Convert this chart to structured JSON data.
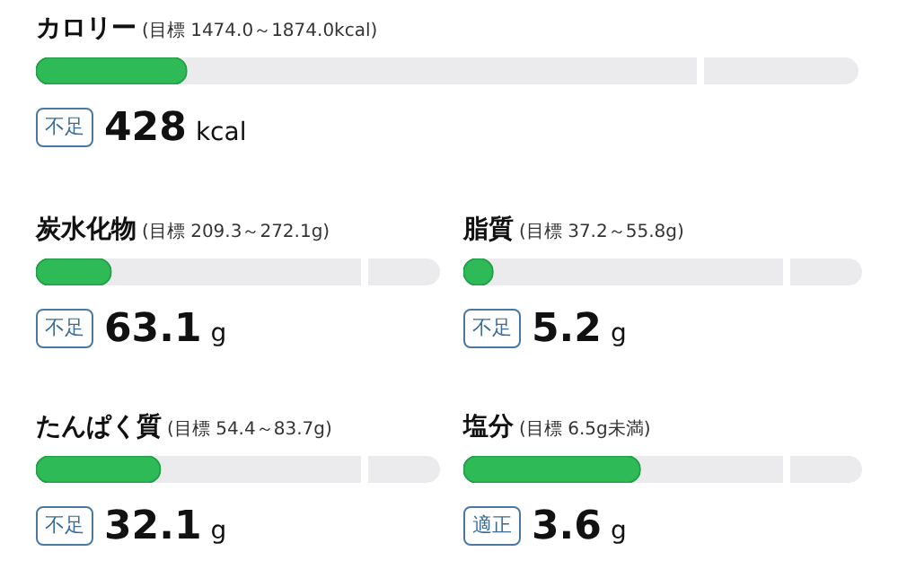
{
  "chart_data": [
    {
      "type": "other",
      "title": "カロリー",
      "subtitle": "(目標 1474.0～1874.0kcal)",
      "values": [
        428
      ],
      "color": "#2dba57",
      "data_labels": true,
      "annotations": [
        "不足",
        "kcal"
      ]
    },
    {
      "type": "other",
      "title": "炭水化物",
      "subtitle": "(目標 209.3～272.1g)",
      "values": [
        63.1
      ],
      "color": "#2dba57",
      "data_labels": true,
      "annotations": [
        "不足",
        "g"
      ]
    },
    {
      "type": "other",
      "title": "脂質",
      "subtitle": "(目標 37.2～55.8g)",
      "values": [
        5.2
      ],
      "color": "#2dba57",
      "data_labels": true,
      "annotations": [
        "不足",
        "g"
      ]
    },
    {
      "type": "other",
      "title": "たんぱく質",
      "subtitle": "(目標 54.4～83.7g)",
      "values": [
        32.1
      ],
      "color": "#2dba57",
      "data_labels": true,
      "annotations": [
        "不足",
        "g"
      ]
    },
    {
      "type": "other",
      "title": "塩分",
      "subtitle": "(目標 6.5g未満)",
      "values": [
        3.6
      ],
      "color": "#2dba57",
      "data_labels": true,
      "annotations": [
        "適正",
        "g"
      ]
    }
  ]
}
